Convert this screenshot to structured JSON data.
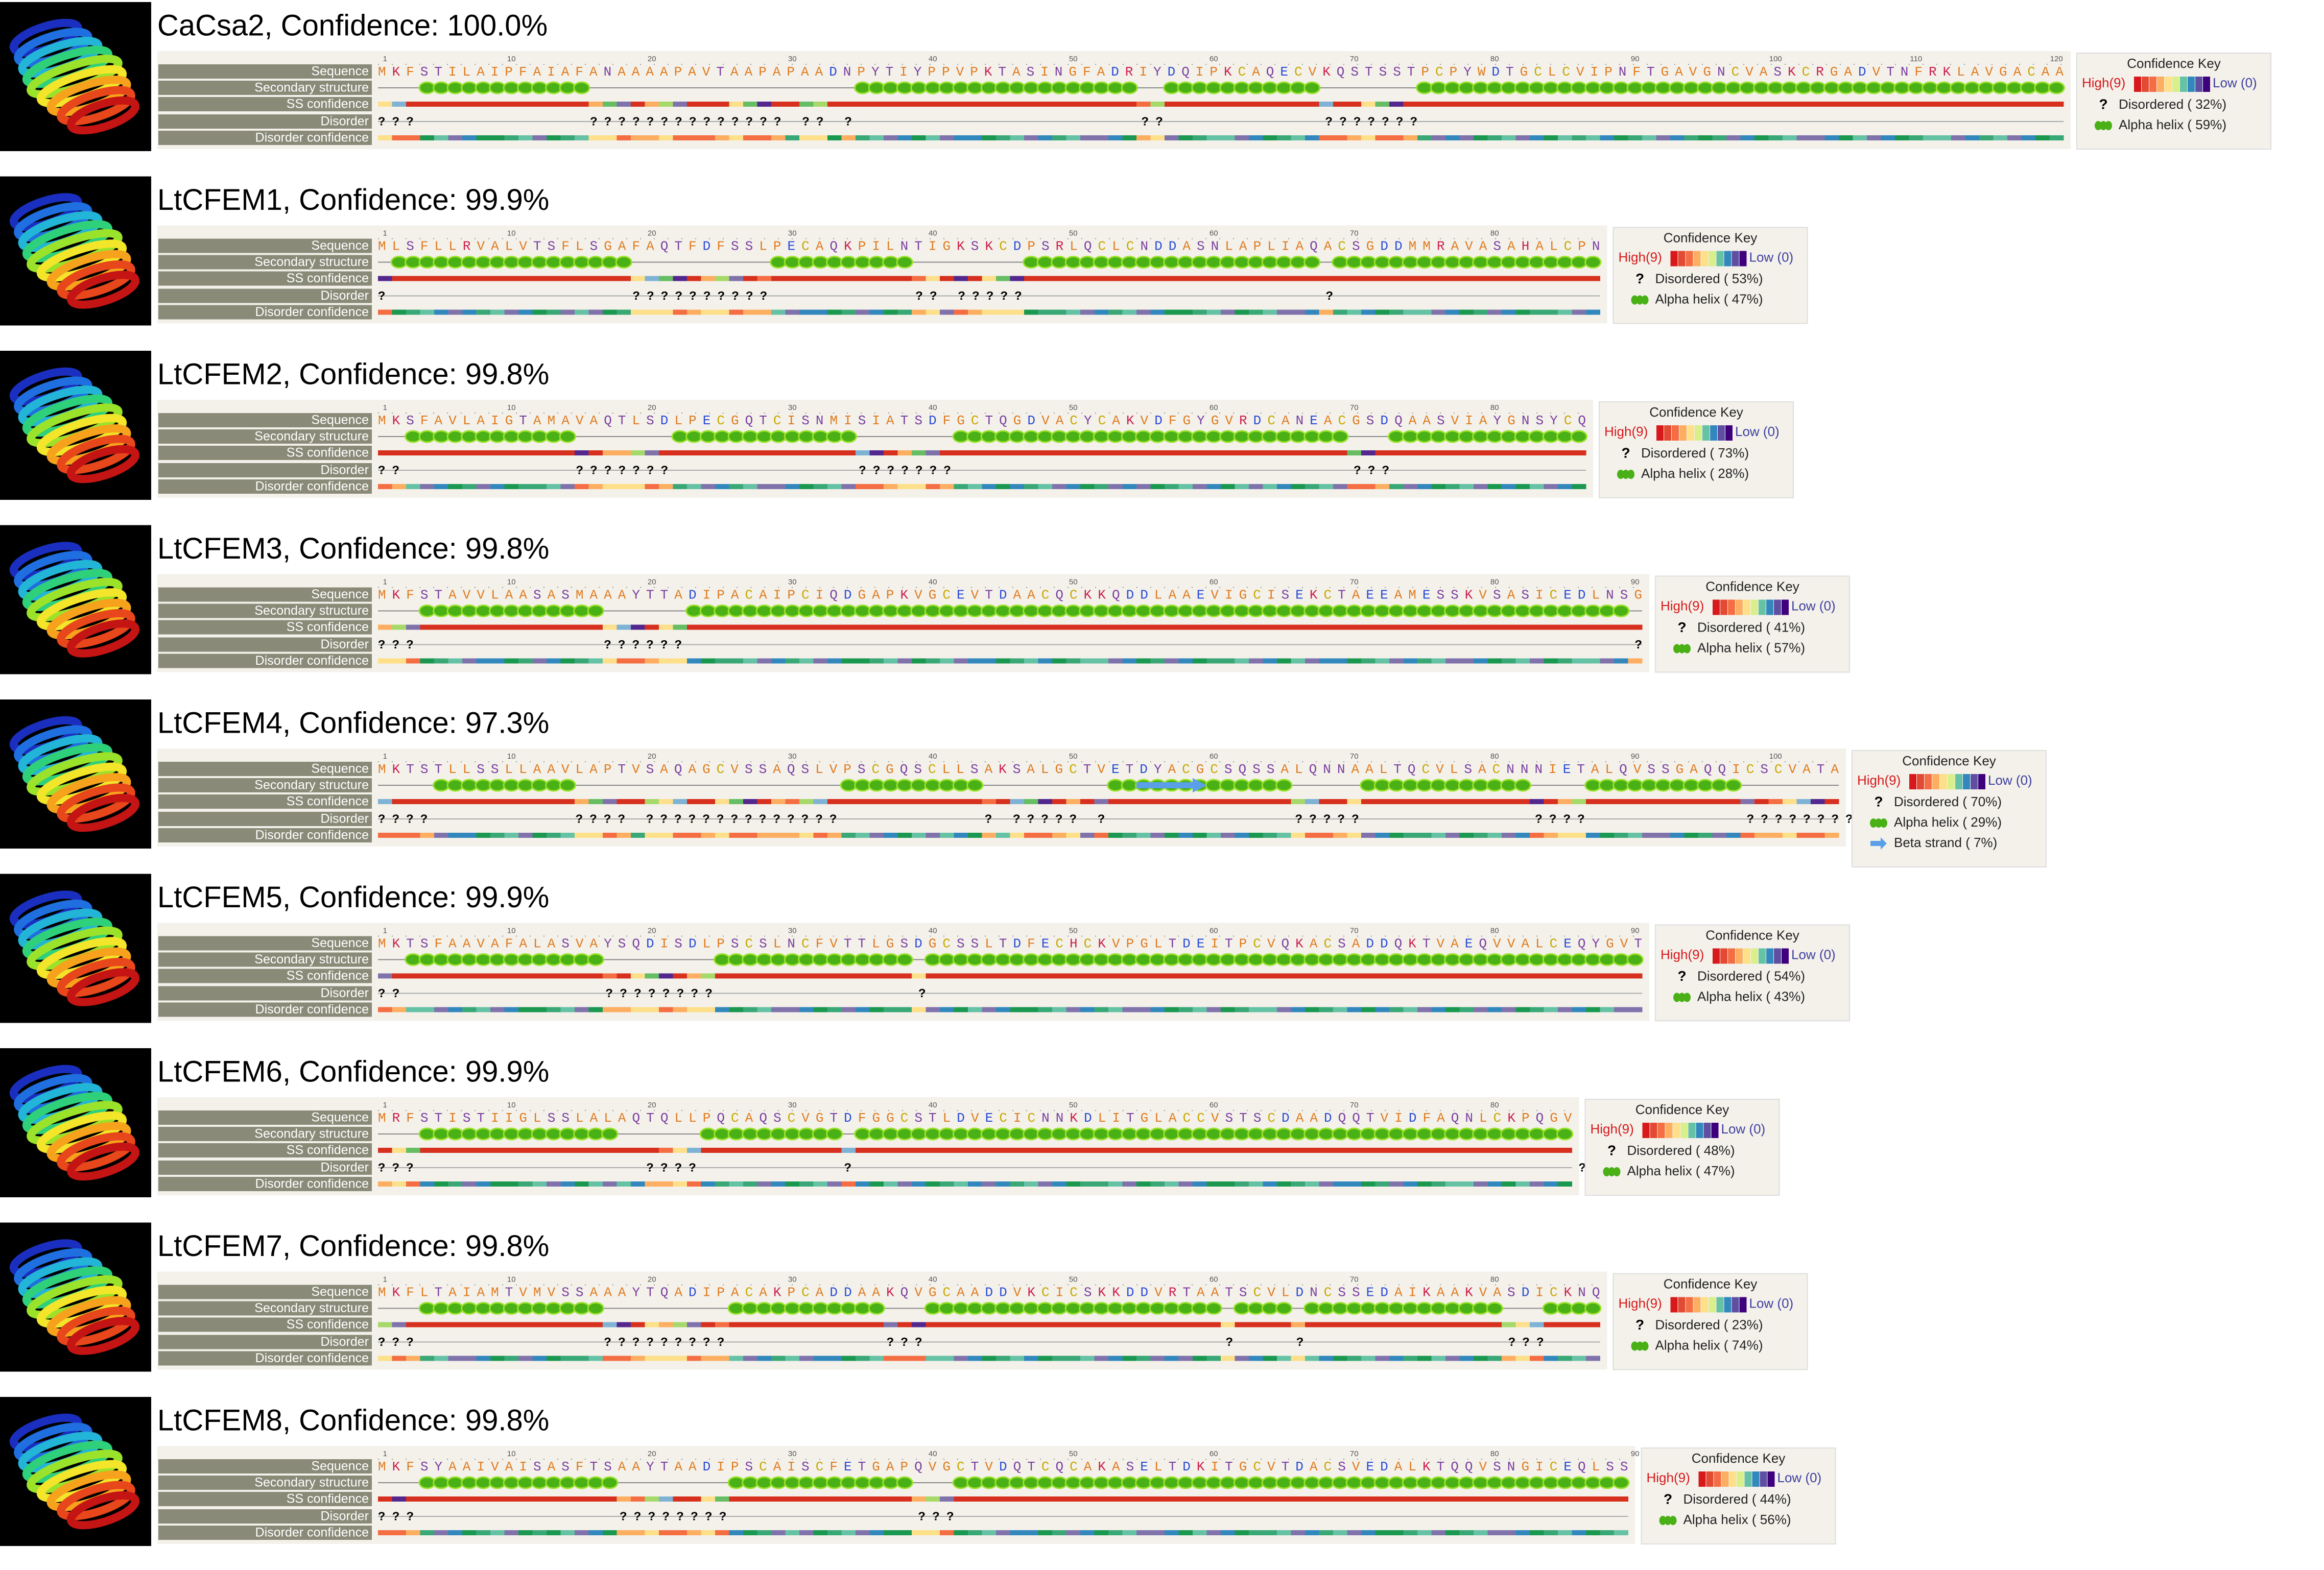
{
  "row_labels": [
    "Sequence",
    "Secondary structure",
    "SS confidence",
    "Disorder",
    "Disorder confidence"
  ],
  "key": {
    "title": "Confidence Key",
    "high": "High(9)",
    "low": "Low (0)"
  },
  "panels": [
    {
      "title": "CaCsa2, Confidence: 100.0%",
      "sequence": "MKFSTILAIPFAIAFANAAAAPAVTAAPAPAADNPYTIYPPVPKTASINGFADRIYDQIPKCAQECVKQSTSSTPCPYWDTGCLCVIPNFTGAVGNCVASKCRGADVTNFRKLAVGACAA",
      "ruler": [
        1,
        10,
        20,
        30,
        40,
        50,
        60,
        70,
        80,
        90,
        100,
        110,
        120
      ],
      "disorder": "???            ?????????????? ?? ?                    ??           ???????",
      "key_items": [
        {
          "symbol": "?",
          "label": "Disordered ( 32%)"
        },
        {
          "label": "Alpha helix ( 59%)"
        }
      ]
    },
    {
      "title": "LtCFEM1, Confidence: 99.9%",
      "sequence": "MLSFLLRVALVTSFLSGAFAQTFDFSSLPECAQKPILNTIGKSKCDPSRLQCLCNDDASNLAPLIAQACSGDDMMRAVASAHALCPN",
      "ruler": [
        1,
        10,
        20,
        30,
        40,
        50,
        60,
        70,
        80
      ],
      "disorder": "?                 ??????????          ?? ?????                     ?",
      "key_items": [
        {
          "symbol": "?",
          "label": "Disordered ( 53%)"
        },
        {
          "label": "Alpha helix ( 47%)"
        }
      ]
    },
    {
      "title": "LtCFEM2, Confidence: 99.8%",
      "sequence": "MKSFAVLAIGTAMAVAQTLSDLPECGQTCISNMISIATSDFGCTQGDVACYCAKVDFGYGVRDCANEACGSDQAASVIAYGNSYCQ",
      "ruler": [
        1,
        10,
        20,
        30,
        40,
        50,
        60,
        70,
        80
      ],
      "disorder": "??            ???????             ???????                            ???",
      "key_items": [
        {
          "symbol": "?",
          "label": "Disordered ( 73%)"
        },
        {
          "label": "Alpha helix ( 28%)"
        }
      ]
    },
    {
      "title": "LtCFEM3, Confidence: 99.8%",
      "sequence": "MKFSTAVVLAASASMAAAYTTADIPACAIPCIQDGAPKVGCEVTDAACQCKKQDDLAAEVIGCISEKCTAEEAMESSKVSASICEDLNSG",
      "ruler": [
        1,
        10,
        20,
        30,
        40,
        50,
        60,
        70,
        80,
        90
      ],
      "disorder": "???             ??????                                                                   ?",
      "key_items": [
        {
          "symbol": "?",
          "label": "Disordered ( 41%)"
        },
        {
          "label": "Alpha helix ( 57%)"
        }
      ]
    },
    {
      "title": "LtCFEM4, Confidence: 97.3%",
      "sequence": "MKTSTLLSSLLAAVLAPTVSAQAGCVSSAQSLVPSCGQSCLLSAKSALGCTVETDYACGCSQSSALQNNAALTQCVLSACNNNIETALQVSSGAQQICSCVATA",
      "ruler": [
        1,
        10,
        20,
        30,
        40,
        50,
        60,
        70,
        80,
        90,
        100
      ],
      "disorder": "????          ???? ??????????????          ? ????? ?             ?????            ????           ????????",
      "key_items": [
        {
          "symbol": "?",
          "label": "Disordered ( 70%)"
        },
        {
          "label": "Alpha helix ( 29%)"
        },
        {
          "label": "Beta strand ( 7%)"
        }
      ]
    },
    {
      "title": "LtCFEM5, Confidence: 99.9%",
      "sequence": "MKTSFAAVAFALASVAYSQDISDLPSCSLNCFVTTLGSDGCSSLTDFECHCKVPGLTDEITPCVQKACSADDQKTVAEQVVALCEQYGVT",
      "ruler": [
        1,
        10,
        20,
        30,
        40,
        50,
        60,
        70,
        80,
        90
      ],
      "disorder": "??              ????????              ?",
      "key_items": [
        {
          "symbol": "?",
          "label": "Disordered ( 54%)"
        },
        {
          "label": "Alpha helix ( 43%)"
        }
      ]
    },
    {
      "title": "LtCFEM6, Confidence: 99.9%",
      "sequence": "MRFSTISTIIGLSSLALAQTQLLPQCAQSCVGTDFGGCSTLDVECICNNKDLITGLACCVSTSCDAADQQTVIDFAQNLCKPQGV",
      "ruler": [
        1,
        10,
        20,
        30,
        40,
        50,
        60,
        70,
        80
      ],
      "disorder": "???                ????          ?                                                   ?",
      "key_items": [
        {
          "symbol": "?",
          "label": "Disordered ( 48%)"
        },
        {
          "label": "Alpha helix ( 47%)"
        }
      ]
    },
    {
      "title": "LtCFEM7, Confidence: 99.8%",
      "sequence": "MKFLTAIAMTVMVSSAAAYTQADIPACAKPCADDAAKQVGCAADDVKCICSKKDDVRTAATSCVLDNCSSEDAIKAAKVASDICKNQ",
      "ruler": [
        1,
        10,
        20,
        30,
        40,
        50,
        60,
        70,
        80
      ],
      "disorder": "???             ?????????           ???                     ?    ?              ???",
      "key_items": [
        {
          "symbol": "?",
          "label": "Disordered ( 23%)"
        },
        {
          "label": "Alpha helix ( 74%)"
        }
      ]
    },
    {
      "title": "LtCFEM8, Confidence: 99.8%",
      "sequence": "MKFSYAAIVAISASFTSAAYTAADIPSCAISCFETGAPQVGCTVDQTCQCAKASELTDKITGCVTDACSVEDALKTQQVSNGICEQLSS",
      "ruler": [
        1,
        10,
        20,
        30,
        40,
        50,
        60,
        70,
        80,
        90
      ],
      "disorder": "???              ????????             ???",
      "key_items": [
        {
          "symbol": "?",
          "label": "Disordered ( 44%)"
        },
        {
          "label": "Alpha helix ( 56%)"
        }
      ]
    }
  ]
}
